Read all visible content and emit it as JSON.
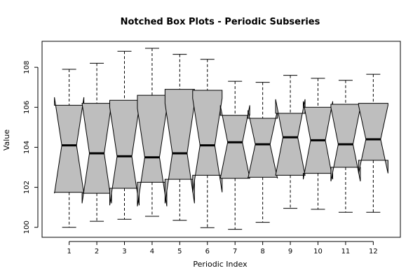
{
  "chart_data": {
    "type": "boxplot",
    "title": "Notched Box Plots - Periodic Subseries",
    "xlabel": "Periodic Index",
    "ylabel": "Value",
    "categories": [
      "1",
      "2",
      "3",
      "4",
      "5",
      "6",
      "7",
      "8",
      "9",
      "10",
      "11",
      "12"
    ],
    "ylim": [
      99.5,
      109.3
    ],
    "yticks": [
      100,
      102,
      104,
      106,
      108
    ],
    "boxes": [
      {
        "min": 100.0,
        "q1": 101.75,
        "median": 104.1,
        "q3": 106.1,
        "max": 107.9,
        "notch_lo": 101.7,
        "notch_hi": 106.5
      },
      {
        "min": 100.3,
        "q1": 101.7,
        "median": 103.7,
        "q3": 106.2,
        "max": 108.2,
        "notch_lo": 101.2,
        "notch_hi": 106.2
      },
      {
        "min": 100.4,
        "q1": 101.95,
        "median": 103.55,
        "q3": 106.35,
        "max": 108.8,
        "notch_lo": 101.1,
        "notch_hi": 106.0
      },
      {
        "min": 100.55,
        "q1": 102.25,
        "median": 103.5,
        "q3": 106.6,
        "max": 108.95,
        "notch_lo": 101.05,
        "notch_hi": 105.95
      },
      {
        "min": 100.35,
        "q1": 102.4,
        "median": 103.7,
        "q3": 106.9,
        "max": 108.65,
        "notch_lo": 101.2,
        "notch_hi": 106.2
      },
      {
        "min": 99.98,
        "q1": 102.6,
        "median": 104.1,
        "q3": 106.85,
        "max": 108.4,
        "notch_lo": 101.75,
        "notch_hi": 106.45
      },
      {
        "min": 99.9,
        "q1": 102.45,
        "median": 104.25,
        "q3": 105.6,
        "max": 107.3,
        "notch_lo": 102.45,
        "notch_hi": 106.1
      },
      {
        "min": 100.25,
        "q1": 102.5,
        "median": 104.15,
        "q3": 105.45,
        "max": 107.25,
        "notch_lo": 102.45,
        "notch_hi": 105.85
      },
      {
        "min": 100.95,
        "q1": 102.6,
        "median": 104.5,
        "q3": 105.7,
        "max": 107.6,
        "notch_lo": 102.6,
        "notch_hi": 106.4
      },
      {
        "min": 100.9,
        "q1": 102.7,
        "median": 104.35,
        "q3": 106.0,
        "max": 107.45,
        "notch_lo": 102.4,
        "notch_hi": 106.3
      },
      {
        "min": 100.75,
        "q1": 103.0,
        "median": 104.15,
        "q3": 106.15,
        "max": 107.35,
        "notch_lo": 102.3,
        "notch_hi": 106.0
      },
      {
        "min": 100.75,
        "q1": 103.35,
        "median": 104.4,
        "q3": 106.2,
        "max": 107.65,
        "notch_lo": 102.7,
        "notch_hi": 106.1
      }
    ],
    "box_fill": "#bebebe",
    "grid": false,
    "legend": "none"
  }
}
